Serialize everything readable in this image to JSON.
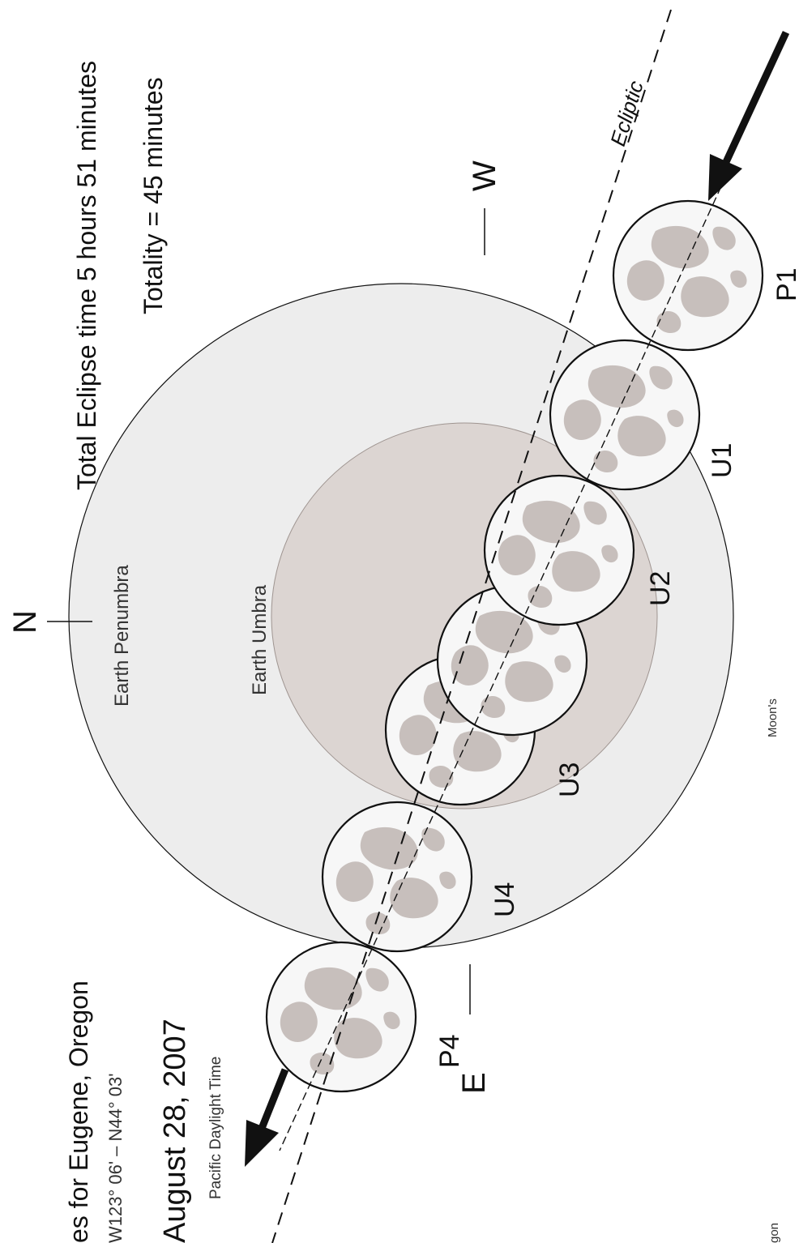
{
  "header": {
    "title": "es for Eugene, Oregon",
    "coordinates": "W123° 06' – N44° 03'",
    "date": "August 28, 2007",
    "timezone": "Pacific Daylight Time",
    "cropped_fragment": "gon"
  },
  "summary": {
    "total_time": "Total Eclipse time 5 hours 51 minutes",
    "totality": "Totality = 45 minutes"
  },
  "directions": {
    "north": "N",
    "west": "W",
    "east": "E"
  },
  "regions": {
    "penumbra": "Earth Penumbra",
    "umbra": "Earth Umbra",
    "moon_path": "Moon's",
    "ecliptic": "Ecliptic"
  },
  "phases": [
    "P1",
    "U1",
    "U2",
    "U3",
    "U4",
    "P4"
  ],
  "colors": {
    "penumbra_fill": "#ededed",
    "umbra_fill": "#dcd5d2",
    "moon_fill": "#f7f7f7",
    "moon_shading": "#c7bfbc",
    "outline": "#111111"
  }
}
